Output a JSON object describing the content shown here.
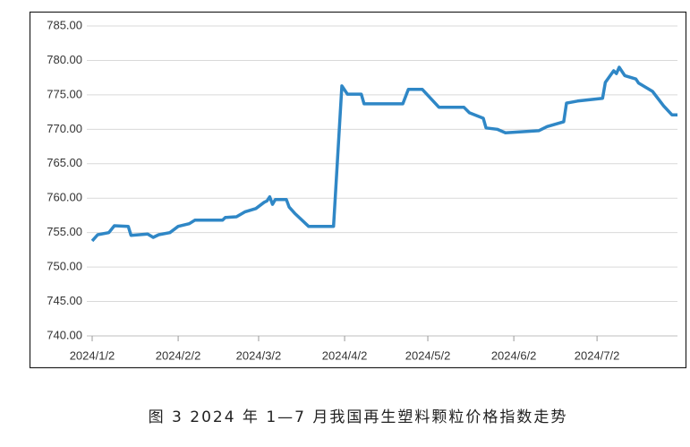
{
  "chart_data": {
    "type": "line",
    "caption": "图 3  2024 年 1—7 月我国再生塑料颗粒价格指数走势",
    "xlim": [
      "2024-01-02",
      "2024-07-31"
    ],
    "xticks": [
      {
        "value": "2024-01-02",
        "label": "2024/1/2"
      },
      {
        "value": "2024-02-02",
        "label": "2024/2/2"
      },
      {
        "value": "2024-03-02",
        "label": "2024/3/2"
      },
      {
        "value": "2024-04-02",
        "label": "2024/4/2"
      },
      {
        "value": "2024-05-02",
        "label": "2024/5/2"
      },
      {
        "value": "2024-06-02",
        "label": "2024/6/2"
      },
      {
        "value": "2024-07-02",
        "label": "2024/7/2"
      }
    ],
    "ylim": [
      740,
      785
    ],
    "yticks": [
      {
        "value": 740,
        "label": "740.00"
      },
      {
        "value": 745,
        "label": "745.00"
      },
      {
        "value": 750,
        "label": "750.00"
      },
      {
        "value": 755,
        "label": "755.00"
      },
      {
        "value": 760,
        "label": "760.00"
      },
      {
        "value": 765,
        "label": "765.00"
      },
      {
        "value": 770,
        "label": "770.00"
      },
      {
        "value": 775,
        "label": "775.00"
      },
      {
        "value": 780,
        "label": "780.00"
      },
      {
        "value": 785,
        "label": "785.00"
      }
    ],
    "grid": true,
    "x": [
      "2024-01-02",
      "2024-01-04",
      "2024-01-08",
      "2024-01-10",
      "2024-01-15",
      "2024-01-16",
      "2024-01-22",
      "2024-01-24",
      "2024-01-26",
      "2024-01-30",
      "2024-02-02",
      "2024-02-06",
      "2024-02-08",
      "2024-02-18",
      "2024-02-19",
      "2024-02-23",
      "2024-02-26",
      "2024-03-01",
      "2024-03-04",
      "2024-03-05",
      "2024-03-06",
      "2024-03-07",
      "2024-03-08",
      "2024-03-12",
      "2024-03-13",
      "2024-03-15",
      "2024-03-20",
      "2024-03-29",
      "2024-04-01",
      "2024-04-03",
      "2024-04-08",
      "2024-04-09",
      "2024-04-23",
      "2024-04-25",
      "2024-04-30",
      "2024-05-06",
      "2024-05-15",
      "2024-05-17",
      "2024-05-22",
      "2024-05-23",
      "2024-05-27",
      "2024-05-30",
      "2024-06-11",
      "2024-06-14",
      "2024-06-20",
      "2024-06-21",
      "2024-06-25",
      "2024-07-04",
      "2024-07-05",
      "2024-07-08",
      "2024-07-09",
      "2024-07-10",
      "2024-07-12",
      "2024-07-16",
      "2024-07-17",
      "2024-07-22",
      "2024-07-26",
      "2024-07-29",
      "2024-07-31"
    ],
    "series": [
      {
        "color": "#2f87c6",
        "values": [
          753.8,
          754.7,
          755.0,
          756.0,
          755.9,
          754.6,
          754.8,
          754.3,
          754.7,
          755.0,
          755.9,
          756.3,
          756.8,
          756.8,
          757.2,
          757.3,
          758.0,
          758.5,
          759.4,
          759.6,
          760.2,
          759.1,
          759.8,
          759.8,
          758.7,
          757.8,
          755.9,
          755.9,
          776.3,
          775.1,
          775.1,
          773.7,
          773.7,
          775.8,
          775.8,
          773.2,
          773.2,
          772.4,
          771.6,
          770.2,
          770.0,
          769.5,
          769.8,
          770.4,
          771.1,
          773.8,
          774.1,
          774.5,
          776.8,
          778.5,
          778.1,
          779.0,
          777.8,
          777.3,
          776.7,
          775.5,
          773.4,
          772.1,
          772.1
        ]
      }
    ]
  }
}
